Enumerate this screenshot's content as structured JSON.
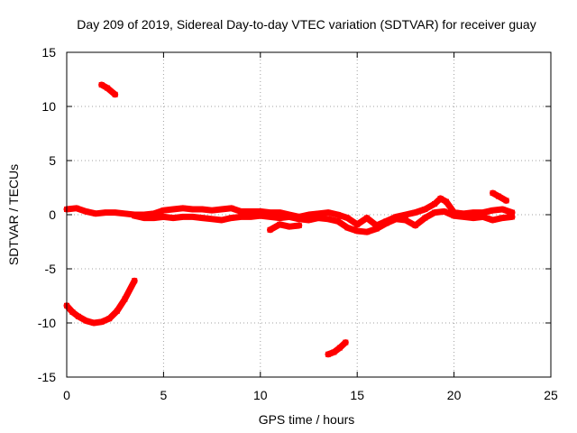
{
  "chart_data": {
    "type": "scatter",
    "title": "Day 209 of 2019, Sidereal Day-to-day VTEC variation (SDTVAR) for receiver guay",
    "xlabel": "GPS time / hours",
    "ylabel": "SDTVAR / TECUs",
    "xlim": [
      0,
      25
    ],
    "ylim": [
      -15,
      15
    ],
    "xticks": [
      0,
      5,
      10,
      15,
      20,
      25
    ],
    "yticks": [
      -15,
      -10,
      -5,
      0,
      5,
      10,
      15
    ],
    "grid": true,
    "series_color": "#ff0000",
    "series": [
      {
        "name": "main band upper",
        "x": [
          0,
          0.5,
          1,
          1.5,
          2,
          2.5,
          3,
          3.5,
          4,
          4.5,
          5,
          5.5,
          6,
          6.5,
          7,
          7.5,
          8,
          8.5,
          9,
          9.5,
          10,
          10.5,
          11,
          11.5,
          12,
          12.5,
          13,
          13.5,
          14,
          14.5,
          15,
          15.5,
          16,
          16.5,
          17,
          17.5,
          18,
          18.5,
          19,
          19.3,
          19.6,
          20,
          20.5,
          21,
          21.5,
          22,
          22.5,
          23
        ],
        "y": [
          0.5,
          0.6,
          0.3,
          0.1,
          0.2,
          0.2,
          0.1,
          0.0,
          0.0,
          0.1,
          0.4,
          0.5,
          0.6,
          0.5,
          0.5,
          0.4,
          0.5,
          0.6,
          0.3,
          0.3,
          0.3,
          0.2,
          0.2,
          0.0,
          -0.2,
          0.0,
          0.1,
          0.2,
          0.0,
          -0.3,
          -0.9,
          -0.3,
          -1.0,
          -0.6,
          -0.2,
          0.0,
          0.2,
          0.5,
          1.0,
          1.5,
          1.2,
          0.2,
          0.1,
          0.2,
          0.2,
          0.4,
          0.5,
          0.2
        ]
      },
      {
        "name": "main band lower",
        "x": [
          3.5,
          4,
          4.5,
          5,
          5.5,
          6,
          6.5,
          7,
          7.5,
          8,
          8.5,
          9,
          9.5,
          10,
          10.5,
          11,
          11.5,
          12,
          12.5,
          13,
          13.5,
          14,
          14.5,
          15,
          15.5,
          16,
          16.5,
          17,
          17.5,
          18,
          18.5,
          19,
          19.5,
          20,
          20.5,
          21,
          21.5,
          22,
          22.5,
          23
        ],
        "y": [
          -0.1,
          -0.3,
          -0.3,
          -0.2,
          -0.3,
          -0.2,
          -0.2,
          -0.3,
          -0.4,
          -0.5,
          -0.3,
          -0.2,
          -0.2,
          -0.1,
          -0.2,
          -0.3,
          -0.2,
          -0.4,
          -0.5,
          -0.3,
          -0.4,
          -0.6,
          -1.2,
          -1.5,
          -1.6,
          -1.3,
          -0.8,
          -0.4,
          -0.5,
          -1.0,
          -0.3,
          0.2,
          0.3,
          -0.1,
          -0.2,
          -0.3,
          -0.2,
          -0.5,
          -0.3,
          -0.2
        ]
      },
      {
        "name": "segment 10.5-12",
        "x": [
          10.5,
          11,
          11.5,
          12
        ],
        "y": [
          -1.4,
          -0.9,
          -1.1,
          -1.0
        ]
      },
      {
        "name": "segment 1.8-2.5",
        "x": [
          1.8,
          2.1,
          2.5
        ],
        "y": [
          12.0,
          11.7,
          11.1
        ]
      },
      {
        "name": "segment 22-22.7",
        "x": [
          22.0,
          22.3,
          22.7
        ],
        "y": [
          2.0,
          1.7,
          1.3
        ]
      },
      {
        "name": "segment 0-3.5",
        "x": [
          0,
          0.3,
          0.6,
          1.0,
          1.4,
          1.8,
          2.2,
          2.6,
          3.0,
          3.5
        ],
        "y": [
          -8.4,
          -9.0,
          -9.4,
          -9.8,
          -10.0,
          -9.9,
          -9.6,
          -8.9,
          -7.8,
          -6.1
        ]
      },
      {
        "name": "segment 13.5-14.4",
        "x": [
          13.5,
          13.8,
          14.1,
          14.4
        ],
        "y": [
          -12.9,
          -12.7,
          -12.3,
          -11.8
        ]
      }
    ]
  }
}
